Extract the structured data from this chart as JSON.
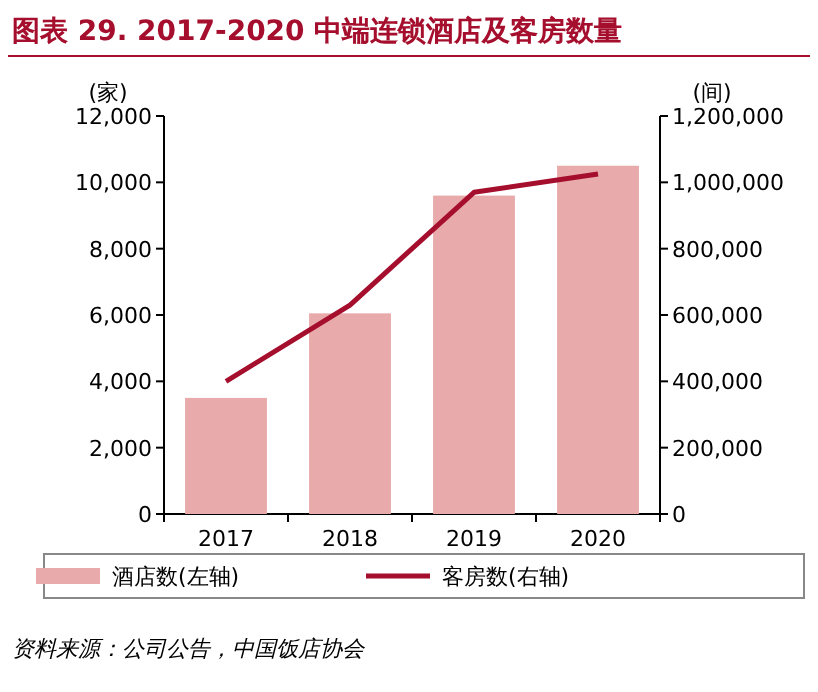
{
  "chart_data": {
    "type": "bar",
    "title": "图表 29. 2017-2020 中端连锁酒店及客房数量",
    "categories": [
      "2017",
      "2018",
      "2019",
      "2020"
    ],
    "series": [
      {
        "name": "酒店数(左轴)",
        "color": "#e8aaaa",
        "values": [
          3500,
          6050,
          9600,
          10500
        ]
      },
      {
        "name": "客房数(右轴)",
        "type": "line",
        "axis": "y2",
        "color": "#a50f2d",
        "values": [
          400000,
          630000,
          970000,
          1025000
        ]
      }
    ],
    "ylabel": "(家)",
    "y2label": "(间)",
    "ylim": [
      0,
      12000
    ],
    "yticks": [
      {
        "value": 0,
        "label": "0"
      },
      {
        "value": 2000,
        "label": "2,000"
      },
      {
        "value": 4000,
        "label": "4,000"
      },
      {
        "value": 6000,
        "label": "6,000"
      },
      {
        "value": 8000,
        "label": "8,000"
      },
      {
        "value": 10000,
        "label": "10,000"
      },
      {
        "value": 12000,
        "label": "12,000"
      }
    ],
    "y2lim": [
      0,
      1200000
    ],
    "y2ticks": [
      {
        "value": 0,
        "label": "0"
      },
      {
        "value": 200000,
        "label": "200,000"
      },
      {
        "value": 400000,
        "label": "400,000"
      },
      {
        "value": 600000,
        "label": "600,000"
      },
      {
        "value": 800000,
        "label": "800,000"
      },
      {
        "value": 1000000,
        "label": "1,000,000"
      },
      {
        "value": 1200000,
        "label": "1,200,000"
      }
    ],
    "legend": "bottom",
    "annotations": [
      "资料来源：公司公告，中国饭店协会"
    ]
  }
}
